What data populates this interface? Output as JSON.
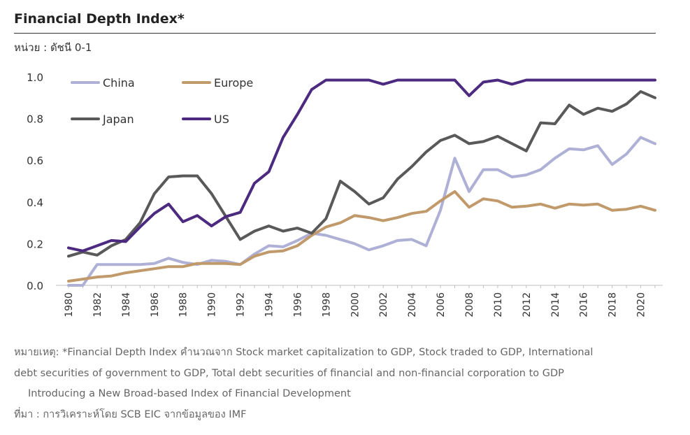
{
  "header": {
    "title": "Financial Depth Index*",
    "unit": "หน่วย : ดัชนี 0-1"
  },
  "notes": {
    "line1": "หมายเหตุ: *Financial Depth Index คำนวณจาก Stock market capitalization to GDP, Stock traded to GDP, International",
    "line2": "debt securities of government to GDP, Total debt securities of financial and non-financial corporation to GDP",
    "line3": "Introducing a New Broad-based Index of Financial Development",
    "source": "ที่มา : การวิเคราะห์โดย SCB EIC จากข้อมูลของ IMF"
  },
  "chart_data": {
    "type": "line",
    "title": "Financial Depth Index*",
    "xlabel": "",
    "ylabel": "หน่วย : ดัชนี 0-1",
    "ylim": [
      0,
      1.0
    ],
    "yticks": [
      "0.0",
      "0.2",
      "0.4",
      "0.6",
      "0.8",
      "1.0"
    ],
    "x": [
      1980,
      1981,
      1982,
      1983,
      1984,
      1985,
      1986,
      1987,
      1988,
      1989,
      1990,
      1991,
      1992,
      1993,
      1994,
      1995,
      1996,
      1997,
      1998,
      1999,
      2000,
      2001,
      2002,
      2003,
      2004,
      2005,
      2006,
      2007,
      2008,
      2009,
      2010,
      2011,
      2012,
      2013,
      2014,
      2015,
      2016,
      2017,
      2018,
      2019,
      2020,
      2021
    ],
    "xticks": [
      "1980",
      "1982",
      "1984",
      "1986",
      "1988",
      "1990",
      "1992",
      "1994",
      "1996",
      "1998",
      "2000",
      "2002",
      "2004",
      "2006",
      "2008",
      "2010",
      "2012",
      "2014",
      "2016",
      "2018",
      "2020"
    ],
    "grid": false,
    "legend": "top-left",
    "series": [
      {
        "name": "China",
        "color": "#aeb0d6",
        "values": [
          0.0,
          0.0,
          0.1,
          0.1,
          0.1,
          0.1,
          0.105,
          0.13,
          0.11,
          0.1,
          0.12,
          0.115,
          0.1,
          0.15,
          0.19,
          0.185,
          0.215,
          0.25,
          0.24,
          0.22,
          0.2,
          0.17,
          0.19,
          0.215,
          0.22,
          0.19,
          0.36,
          0.61,
          0.45,
          0.555,
          0.555,
          0.52,
          0.53,
          0.555,
          0.61,
          0.655,
          0.65,
          0.67,
          0.58,
          0.63,
          0.71,
          0.68
        ]
      },
      {
        "name": "Europe",
        "color": "#c19a6b",
        "values": [
          0.02,
          0.03,
          0.04,
          0.045,
          0.06,
          0.07,
          0.08,
          0.09,
          0.09,
          0.105,
          0.105,
          0.105,
          0.1,
          0.14,
          0.16,
          0.165,
          0.19,
          0.24,
          0.28,
          0.3,
          0.335,
          0.325,
          0.31,
          0.325,
          0.345,
          0.355,
          0.405,
          0.45,
          0.375,
          0.415,
          0.405,
          0.375,
          0.38,
          0.39,
          0.37,
          0.39,
          0.385,
          0.39,
          0.36,
          0.365,
          0.38,
          0.36
        ]
      },
      {
        "name": "Japan",
        "color": "#595959",
        "values": [
          0.14,
          0.16,
          0.145,
          0.19,
          0.22,
          0.3,
          0.44,
          0.52,
          0.525,
          0.525,
          0.44,
          0.33,
          0.22,
          0.26,
          0.285,
          0.26,
          0.275,
          0.25,
          0.32,
          0.5,
          0.45,
          0.39,
          0.42,
          0.51,
          0.57,
          0.64,
          0.695,
          0.72,
          0.68,
          0.69,
          0.715,
          0.68,
          0.645,
          0.78,
          0.775,
          0.865,
          0.82,
          0.85,
          0.835,
          0.87,
          0.93,
          0.9
        ]
      },
      {
        "name": "US",
        "color": "#4b2a7f",
        "values": [
          0.18,
          0.165,
          0.19,
          0.215,
          0.21,
          0.28,
          0.345,
          0.39,
          0.305,
          0.335,
          0.285,
          0.33,
          0.35,
          0.49,
          0.545,
          0.71,
          0.82,
          0.94,
          0.985,
          0.985,
          0.985,
          0.985,
          0.965,
          0.985,
          0.985,
          0.985,
          0.985,
          0.985,
          0.91,
          0.975,
          0.985,
          0.965,
          0.985,
          0.985,
          0.985,
          0.985,
          0.985,
          0.985,
          0.985,
          0.985,
          0.985,
          0.985
        ]
      }
    ]
  }
}
